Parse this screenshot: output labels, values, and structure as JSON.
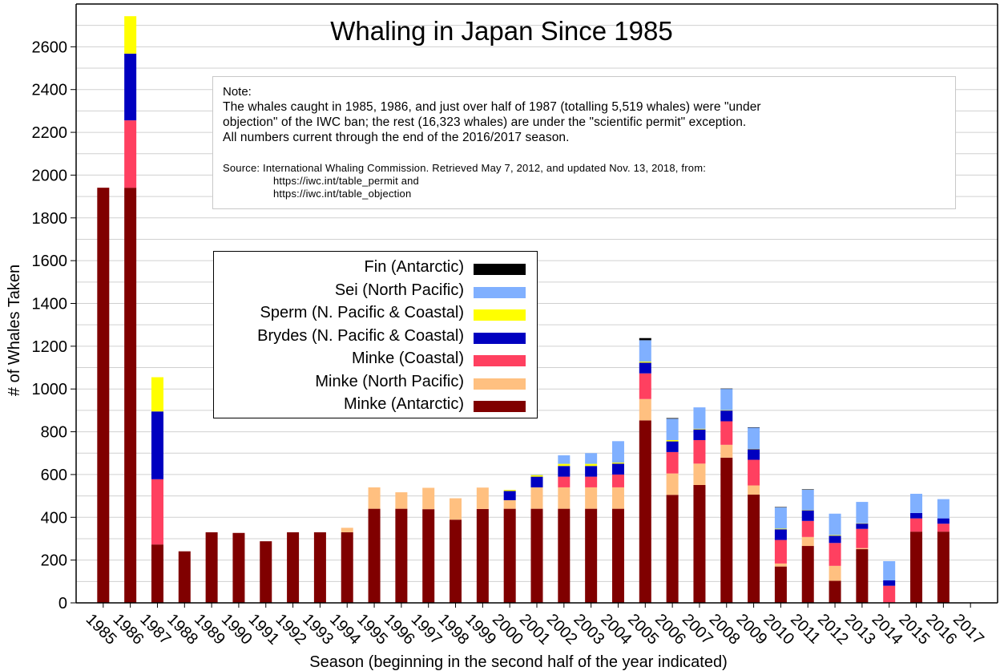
{
  "chart_data": {
    "type": "bar",
    "stacked": true,
    "title": "Whaling in Japan Since 1985",
    "xlabel": "Season (beginning in the second half of the year indicated)",
    "ylabel": "# of Whales Taken",
    "ylim": [
      0,
      2800
    ],
    "yticks": [
      0,
      200,
      400,
      600,
      800,
      1000,
      1200,
      1400,
      1600,
      1800,
      2000,
      2200,
      2400,
      2600
    ],
    "grid": true,
    "legend_position": "left",
    "categories": [
      "1985",
      "1986",
      "1987",
      "1988",
      "1989",
      "1990",
      "1991",
      "1992",
      "1993",
      "1994",
      "1995",
      "1996",
      "1997",
      "1998",
      "1999",
      "2000",
      "2001",
      "2002",
      "2003",
      "2004",
      "2005",
      "2006",
      "2007",
      "2008",
      "2009",
      "2010",
      "2011",
      "2012",
      "2013",
      "2014",
      "2015",
      "2016",
      "2017"
    ],
    "series": [
      {
        "name": "Minke (Antarctic)",
        "color": "#800000",
        "values": [
          1941,
          1941,
          273,
          241,
          330,
          327,
          288,
          330,
          330,
          330,
          440,
          440,
          438,
          389,
          439,
          440,
          440,
          440,
          440,
          440,
          853,
          505,
          551,
          679,
          506,
          170,
          266,
          103,
          251,
          0,
          333,
          333,
          0
        ]
      },
      {
        "name": "Minke (North Pacific)",
        "color": "#ffc080",
        "values": [
          0,
          0,
          0,
          0,
          0,
          0,
          0,
          0,
          0,
          21,
          100,
          77,
          100,
          100,
          100,
          40,
          100,
          100,
          100,
          100,
          100,
          100,
          100,
          60,
          43,
          14,
          42,
          70,
          5,
          0,
          0,
          0,
          0
        ]
      },
      {
        "name": "Minke (Coastal)",
        "color": "#ff4060",
        "values": [
          0,
          315,
          305,
          0,
          0,
          0,
          0,
          0,
          0,
          0,
          0,
          0,
          0,
          0,
          0,
          0,
          0,
          50,
          50,
          60,
          120,
          100,
          110,
          110,
          120,
          110,
          75,
          107,
          90,
          80,
          62,
          37,
          0
        ]
      },
      {
        "name": "Brydes (N. Pacific & Coastal)",
        "color": "#0000c0",
        "values": [
          0,
          312,
          317,
          0,
          0,
          0,
          0,
          0,
          0,
          0,
          0,
          0,
          0,
          0,
          0,
          43,
          50,
          50,
          50,
          51,
          50,
          50,
          50,
          50,
          50,
          50,
          50,
          34,
          25,
          25,
          25,
          25,
          0
        ]
      },
      {
        "name": "Sperm (N. Pacific & Coastal)",
        "color": "#ffff00",
        "values": [
          0,
          175,
          160,
          0,
          0,
          0,
          0,
          0,
          0,
          0,
          0,
          0,
          0,
          0,
          0,
          5,
          8,
          10,
          10,
          5,
          5,
          6,
          3,
          2,
          1,
          3,
          1,
          3,
          1,
          0,
          0,
          0,
          0
        ]
      },
      {
        "name": "Sei (North Pacific)",
        "color": "#80b0ff",
        "values": [
          0,
          0,
          0,
          0,
          0,
          0,
          0,
          0,
          0,
          0,
          0,
          0,
          0,
          0,
          0,
          0,
          1,
          40,
          50,
          100,
          100,
          100,
          100,
          100,
          100,
          100,
          95,
          100,
          100,
          90,
          90,
          90,
          0
        ]
      },
      {
        "name": "Fin (Antarctic)",
        "color": "#000000",
        "values": [
          0,
          0,
          0,
          0,
          0,
          0,
          0,
          0,
          0,
          0,
          0,
          0,
          0,
          0,
          0,
          0,
          0,
          0,
          0,
          0,
          10,
          3,
          0,
          1,
          1,
          1,
          2,
          0,
          0,
          0,
          0,
          0,
          0
        ]
      }
    ]
  },
  "note": {
    "heading": "Note:",
    "line1": "The whales caught in 1985, 1986, and just over half of 1987 (totalling 5,519 whales) were \"under",
    "line2": "objection\" of the IWC ban; the rest (16,323 whales) are under the \"scientific permit\" exception.",
    "line3": "All numbers current through the end of the 2016/2017 season.",
    "source1": "Source:  International Whaling Commission. Retrieved May 7, 2012, and updated Nov. 13, 2018, from:",
    "source2": "https://iwc.int/table_permit  and",
    "source3": "https://iwc.int/table_objection"
  },
  "legend": [
    {
      "label": "Fin (Antarctic)",
      "color": "#000000"
    },
    {
      "label": "Sei (North Pacific)",
      "color": "#80b0ff"
    },
    {
      "label": "Sperm (N. Pacific & Coastal)",
      "color": "#ffff00"
    },
    {
      "label": "Brydes (N. Pacific & Coastal)",
      "color": "#0000c0"
    },
    {
      "label": "Minke (Coastal)",
      "color": "#ff4060"
    },
    {
      "label": "Minke (North Pacific)",
      "color": "#ffc080"
    },
    {
      "label": "Minke (Antarctic)",
      "color": "#800000"
    }
  ]
}
